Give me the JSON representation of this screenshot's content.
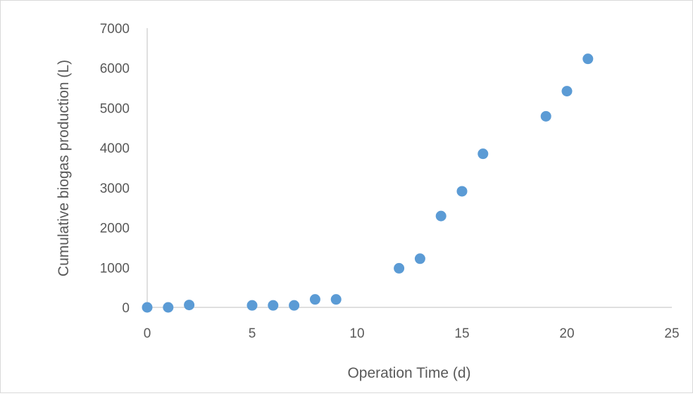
{
  "chart_data": {
    "type": "scatter",
    "title": "",
    "xlabel": "Operation Time (d)",
    "ylabel": "Cumulative biogas production (L)",
    "xlim": [
      0,
      25
    ],
    "ylim": [
      0,
      7000
    ],
    "xticks": [
      0,
      5,
      10,
      15,
      20,
      25
    ],
    "yticks": [
      0,
      1000,
      2000,
      3000,
      4000,
      5000,
      6000,
      7000
    ],
    "x_tick_labels": [
      "0",
      "5",
      "10",
      "15",
      "20",
      "25"
    ],
    "y_tick_labels": [
      "0",
      "1000",
      "2000",
      "3000",
      "4000",
      "5000",
      "6000",
      "7000"
    ],
    "grid": false,
    "legend": "none",
    "marker_color": "#5b9bd5",
    "series": [
      {
        "x": [
          0,
          1,
          2,
          5,
          6,
          7,
          8,
          9,
          12,
          13,
          14,
          15,
          16,
          19,
          20,
          21
        ],
        "y": [
          0,
          0,
          60,
          50,
          50,
          50,
          200,
          200,
          980,
          1220,
          2290,
          2910,
          3850,
          4790,
          5420,
          6230
        ]
      }
    ]
  }
}
